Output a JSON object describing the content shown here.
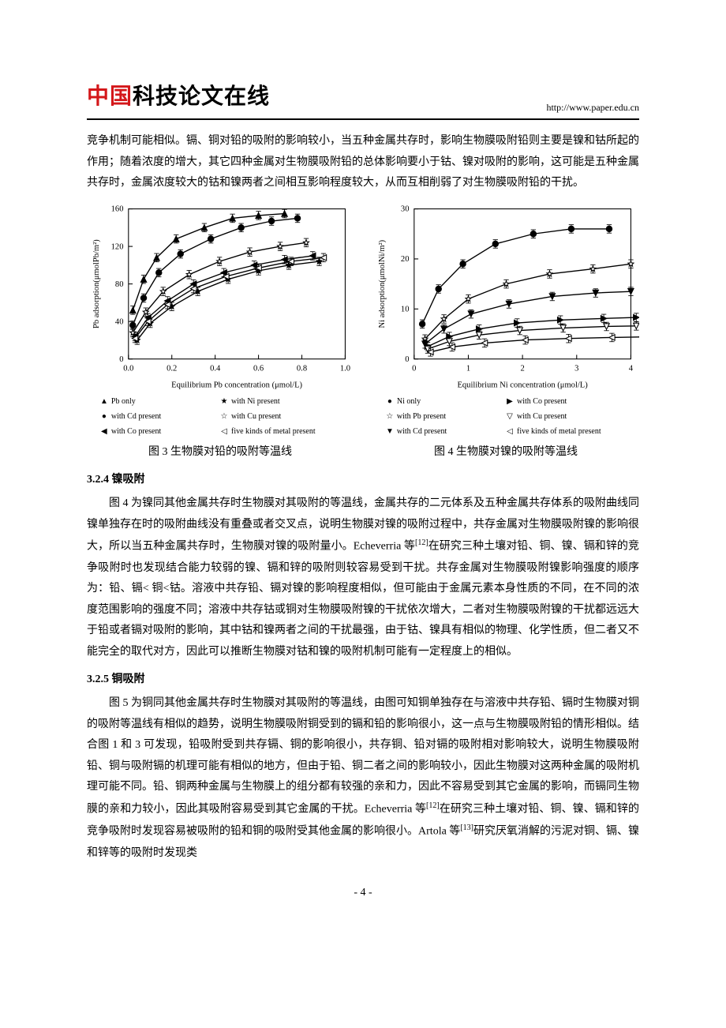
{
  "header": {
    "logo_red": "中国",
    "logo_black": "科技论文在线",
    "url": "http://www.paper.edu.cn"
  },
  "intro_para": "竞争机制可能相似。镉、铜对铅的吸附的影响较小，当五种金属共存时，影响生物膜吸附铅则主要是镍和钴所起的作用；随着浓度的增大，其它四种金属对生物膜吸附铅的总体影响要小于钴、镍对吸附的影响，这可能是五种金属共存时，金属浓度较大的钴和镍两者之间相互影响程度较大，从而互相削弱了对生物膜吸附铅的干扰。",
  "fig3": {
    "caption": "图 3  生物膜对铅的吸附等温线",
    "xlabel": "Equilibrium Pb concentration (μmol/L)",
    "ylabel": "Pb adsorption(μmolPb/m²)",
    "xlim": [
      0.0,
      1.0
    ],
    "xtick_step": 0.2,
    "ylim": [
      0,
      160
    ],
    "ytick_step": 40,
    "background": "#ffffff",
    "series": [
      {
        "name": "Pb only",
        "marker": "triangle-up",
        "fill": true,
        "x": [
          0.02,
          0.07,
          0.13,
          0.22,
          0.35,
          0.48,
          0.6,
          0.72
        ],
        "y": [
          52,
          85,
          108,
          128,
          140,
          150,
          153,
          155
        ]
      },
      {
        "name": "with Cd present",
        "marker": "circle",
        "fill": true,
        "x": [
          0.02,
          0.07,
          0.14,
          0.24,
          0.38,
          0.52,
          0.66,
          0.78
        ],
        "y": [
          36,
          65,
          92,
          112,
          128,
          140,
          147,
          150
        ]
      },
      {
        "name": "with Co present",
        "marker": "triangle-left",
        "fill": true,
        "x": [
          0.03,
          0.09,
          0.18,
          0.3,
          0.44,
          0.58,
          0.72,
          0.85
        ],
        "y": [
          24,
          44,
          62,
          80,
          92,
          100,
          106,
          110
        ]
      },
      {
        "name": "with Ni present",
        "marker": "star",
        "fill": true,
        "x": [
          0.04,
          0.1,
          0.2,
          0.32,
          0.46,
          0.6,
          0.74,
          0.88
        ],
        "y": [
          20,
          38,
          56,
          72,
          85,
          94,
          100,
          104
        ]
      },
      {
        "name": "with Cu present",
        "marker": "star",
        "fill": false,
        "x": [
          0.02,
          0.08,
          0.16,
          0.28,
          0.42,
          0.56,
          0.7,
          0.82
        ],
        "y": [
          28,
          50,
          72,
          90,
          104,
          114,
          120,
          124
        ]
      },
      {
        "name": "five kinds of metal present",
        "marker": "triangle-left",
        "fill": false,
        "x": [
          0.03,
          0.09,
          0.18,
          0.3,
          0.45,
          0.6,
          0.75,
          0.9
        ],
        "y": [
          22,
          40,
          58,
          75,
          88,
          97,
          104,
          108
        ]
      }
    ],
    "legend_layout": [
      [
        "Pb only",
        "with Ni present"
      ],
      [
        "with Cd present",
        "with Cu present"
      ],
      [
        "with Co present",
        "five kinds of metal present"
      ]
    ]
  },
  "fig4": {
    "caption": "图 4   生物膜对镍的吸附等温线",
    "xlabel": "Equilibrium Ni concentration (μmol/L)",
    "ylabel": "Ni adsorption(μmolNi/m²)",
    "xlim": [
      0,
      4
    ],
    "xtick_step": 1,
    "ylim": [
      0,
      30
    ],
    "ytick_step": 10,
    "background": "#ffffff",
    "series": [
      {
        "name": "Ni only",
        "marker": "circle",
        "fill": true,
        "x": [
          0.15,
          0.45,
          0.9,
          1.5,
          2.2,
          2.9,
          3.6
        ],
        "y": [
          7,
          14,
          19,
          23,
          25,
          26,
          26
        ]
      },
      {
        "name": "with Pb present",
        "marker": "star",
        "fill": false,
        "x": [
          0.2,
          0.55,
          1.0,
          1.7,
          2.5,
          3.3,
          4.0
        ],
        "y": [
          4,
          8,
          12,
          15,
          17,
          18,
          19
        ]
      },
      {
        "name": "with Cd present",
        "marker": "triangle-down",
        "fill": true,
        "x": [
          0.2,
          0.55,
          1.05,
          1.75,
          2.55,
          3.35,
          4.0
        ],
        "y": [
          3,
          6,
          9,
          11,
          12.5,
          13.2,
          13.5
        ]
      },
      {
        "name": "with Co present",
        "marker": "triangle-right",
        "fill": true,
        "x": [
          0.25,
          0.65,
          1.2,
          1.9,
          2.7,
          3.5,
          4.1
        ],
        "y": [
          2.5,
          4.5,
          6,
          7.2,
          7.8,
          8.1,
          8.3
        ]
      },
      {
        "name": "with Cu present",
        "marker": "triangle-down",
        "fill": false,
        "x": [
          0.25,
          0.65,
          1.2,
          1.95,
          2.75,
          3.55,
          4.1
        ],
        "y": [
          2,
          3.5,
          4.8,
          5.7,
          6.2,
          6.5,
          6.6
        ]
      },
      {
        "name": "five kinds of metal present",
        "marker": "triangle-left",
        "fill": false,
        "x": [
          0.3,
          0.7,
          1.3,
          2.05,
          2.85,
          3.65,
          4.2
        ],
        "y": [
          1.4,
          2.4,
          3.2,
          3.8,
          4.1,
          4.3,
          4.4
        ]
      }
    ],
    "legend_layout": [
      [
        "Ni only",
        "with Co present"
      ],
      [
        "with Pb present",
        "with Cu present"
      ],
      [
        "with Cd present",
        "five kinds of metal present"
      ]
    ]
  },
  "sec_324": {
    "heading": "3.2.4 镍吸附",
    "para_a": "图 4 为镍同其他金属共存时生物膜对其吸附的等温线，金属共存的二元体系及五种金属共存体系的吸附曲线同镍单独存在时的吸附曲线没有重叠或者交叉点，说明生物膜对镍的吸附过程中，共存金属对生物膜吸附镍的影响很大，所以当五种金属共存时，生物膜对镍的吸附量小。Echeverria 等",
    "sup_a": "[12]",
    "para_b": "在研究三种土壤对铅、铜、镍、镉和锌的竞争吸附时也发现结合能力较弱的镍、镉和锌的吸附则较容易受到干扰。共存金属对生物膜吸附镍影响强度的顺序为：铅、镉< 铜<钴。溶液中共存铅、镉对镍的影响程度相似，但可能由于金属元素本身性质的不同，在不同的浓度范围影响的强度不同；溶液中共存钴或铜对生物膜吸附镍的干扰依次增大，二者对生物膜吸附镍的干扰都远远大于铅或者镉对吸附的影响，其中钴和镍两者之间的干扰最强，由于钴、镍具有相似的物理、化学性质，但二者又不能完全的取代对方，因此可以推断生物膜对钴和镍的吸附机制可能有一定程度上的相似。"
  },
  "sec_325": {
    "heading": "3.2.5 铜吸附",
    "para_a": "图 5 为铜同其他金属共存时生物膜对其吸附的等温线，由图可知铜单独存在与溶液中共存铅、镉时生物膜对铜的吸附等温线有相似的趋势，说明生物膜吸附铜受到的镉和铅的影响很小，这一点与生物膜吸附铅的情形相似。结合图 1 和 3 可发现，铅吸附受到共存镉、铜的影响很小，共存铜、铅对镉的吸附相对影响较大，说明生物膜吸附铅、铜与吸附镉的机理可能有相似的地方，但由于铅、铜二者之间的影响较小，因此生物膜对这两种金属的吸附机理可能不同。铅、铜两种金属与生物膜上的组分都有较强的亲和力，因此不容易受到其它金属的影响，而镉同生物膜的亲和力较小，因此其吸附容易受到其它金属的干扰。Echeverria 等",
    "sup_b": "[12]",
    "para_c": "在研究三种土壤对铅、铜、镍、镉和锌的竞争吸附时发现容易被吸附的铅和铜的吸附受其他金属的影响很小。Artola 等",
    "sup_d": "[13]",
    "para_e": "研究厌氧消解的污泥对铜、镉、镍和锌等的吸附时发现类"
  },
  "page_number": "- 4 -"
}
